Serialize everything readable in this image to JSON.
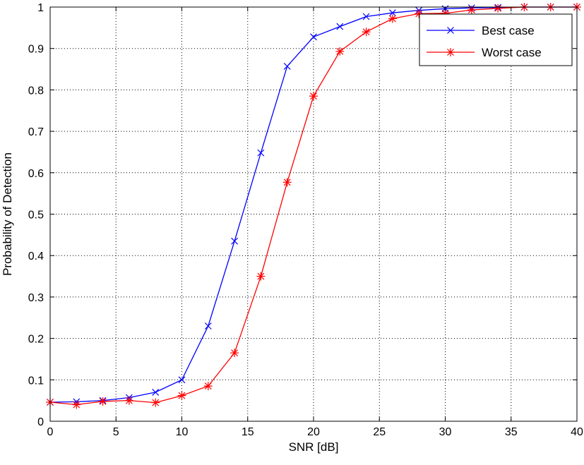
{
  "chart_data": {
    "type": "line",
    "title": "",
    "xlabel": "SNR [dB]",
    "ylabel": "Probability of Detection",
    "xlim": [
      0,
      40
    ],
    "ylim": [
      0,
      1
    ],
    "xticks": [
      0,
      5,
      10,
      15,
      20,
      25,
      30,
      35,
      40
    ],
    "yticks": [
      0,
      0.1,
      0.2,
      0.3,
      0.4,
      0.5,
      0.6,
      0.7,
      0.8,
      0.9,
      1
    ],
    "grid": true,
    "legend_position": "top-right",
    "series": [
      {
        "name": "Best case",
        "color": "#0000ff",
        "marker": "x",
        "x": [
          0,
          2,
          4,
          6,
          8,
          10,
          12,
          14,
          16,
          18,
          20,
          22,
          24,
          26,
          28,
          30,
          32,
          34,
          36,
          38,
          40
        ],
        "y": [
          0.046,
          0.047,
          0.05,
          0.057,
          0.07,
          0.1,
          0.23,
          0.435,
          0.648,
          0.857,
          0.928,
          0.953,
          0.977,
          0.986,
          0.992,
          0.996,
          0.998,
          0.999,
          1.0,
          1.0,
          1.0
        ]
      },
      {
        "name": "Worst case",
        "color": "#ff0000",
        "marker": "*",
        "x": [
          0,
          2,
          4,
          6,
          8,
          10,
          12,
          14,
          16,
          18,
          20,
          22,
          24,
          26,
          28,
          30,
          32,
          34,
          36,
          38,
          40
        ],
        "y": [
          0.046,
          0.04,
          0.048,
          0.05,
          0.045,
          0.062,
          0.085,
          0.165,
          0.35,
          0.577,
          0.785,
          0.893,
          0.94,
          0.972,
          0.984,
          0.985,
          0.993,
          0.997,
          1.0,
          1.0,
          1.0
        ]
      }
    ]
  }
}
